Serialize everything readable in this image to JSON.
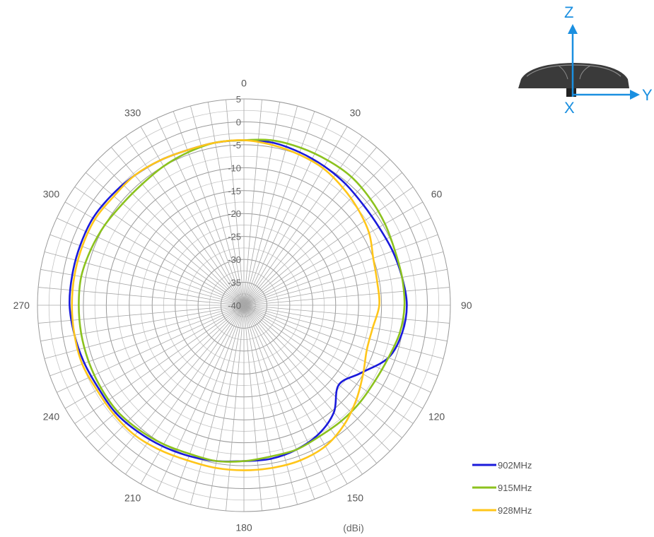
{
  "chart_data": {
    "type": "polar-line",
    "unit_label": "(dBi)",
    "r_range": [
      -40,
      5
    ],
    "r_ticks": [
      5,
      0,
      -5,
      -10,
      -15,
      -20,
      -25,
      -30,
      -35,
      -40
    ],
    "angle_ticks": [
      0,
      30,
      60,
      90,
      120,
      150,
      180,
      210,
      240,
      270,
      300,
      330
    ],
    "angle_direction": "clockwise",
    "zero_angle": "top",
    "grid": true,
    "legend_position": "bottom-right",
    "series": [
      {
        "name": "902MHz",
        "color": "#1a1adb",
        "points": [
          [
            0,
            -4
          ],
          [
            10,
            -4
          ],
          [
            20,
            -4.5
          ],
          [
            30,
            -5
          ],
          [
            40,
            -5.5
          ],
          [
            50,
            -6
          ],
          [
            60,
            -6
          ],
          [
            70,
            -5.5
          ],
          [
            80,
            -5
          ],
          [
            90,
            -4.5
          ],
          [
            100,
            -5
          ],
          [
            110,
            -6.5
          ],
          [
            120,
            -10.5
          ],
          [
            130,
            -13
          ],
          [
            140,
            -9.5
          ],
          [
            150,
            -7.5
          ],
          [
            160,
            -6.5
          ],
          [
            170,
            -6
          ],
          [
            180,
            -6
          ],
          [
            190,
            -5.5
          ],
          [
            200,
            -5
          ],
          [
            210,
            -4.5
          ],
          [
            220,
            -4
          ],
          [
            230,
            -3.5
          ],
          [
            240,
            -3.5
          ],
          [
            250,
            -3
          ],
          [
            260,
            -2.5
          ],
          [
            270,
            -2
          ],
          [
            280,
            -2
          ],
          [
            290,
            -2
          ],
          [
            300,
            -2
          ],
          [
            310,
            -2.5
          ],
          [
            320,
            -3
          ],
          [
            330,
            -3.5
          ],
          [
            340,
            -4
          ],
          [
            350,
            -4
          ]
        ]
      },
      {
        "name": "915MHz",
        "color": "#8cc21e",
        "points": [
          [
            0,
            -4
          ],
          [
            10,
            -3.5
          ],
          [
            20,
            -3.5
          ],
          [
            30,
            -3.5
          ],
          [
            40,
            -3.5
          ],
          [
            50,
            -4
          ],
          [
            60,
            -4.5
          ],
          [
            70,
            -5
          ],
          [
            80,
            -5
          ],
          [
            90,
            -5
          ],
          [
            100,
            -5.5
          ],
          [
            110,
            -6.5
          ],
          [
            120,
            -7
          ],
          [
            130,
            -7
          ],
          [
            140,
            -7
          ],
          [
            150,
            -7
          ],
          [
            160,
            -6.5
          ],
          [
            170,
            -6.5
          ],
          [
            180,
            -6
          ],
          [
            190,
            -5.5
          ],
          [
            200,
            -5.5
          ],
          [
            210,
            -5
          ],
          [
            220,
            -4.5
          ],
          [
            230,
            -4
          ],
          [
            240,
            -4
          ],
          [
            250,
            -4
          ],
          [
            260,
            -4
          ],
          [
            270,
            -4
          ],
          [
            280,
            -4
          ],
          [
            290,
            -4.5
          ],
          [
            300,
            -5
          ],
          [
            310,
            -5.5
          ],
          [
            320,
            -5.5
          ],
          [
            330,
            -5
          ],
          [
            340,
            -4.5
          ],
          [
            350,
            -4
          ]
        ]
      },
      {
        "name": "928MHz",
        "color": "#ffc61a",
        "points": [
          [
            0,
            -4
          ],
          [
            10,
            -4.5
          ],
          [
            20,
            -5
          ],
          [
            30,
            -5.5
          ],
          [
            40,
            -6.5
          ],
          [
            50,
            -7.5
          ],
          [
            60,
            -8.5
          ],
          [
            70,
            -10
          ],
          [
            80,
            -10.5
          ],
          [
            90,
            -10.5
          ],
          [
            100,
            -11.5
          ],
          [
            110,
            -11.5
          ],
          [
            120,
            -10
          ],
          [
            130,
            -8
          ],
          [
            140,
            -6
          ],
          [
            150,
            -4.5
          ],
          [
            160,
            -4
          ],
          [
            170,
            -4
          ],
          [
            180,
            -4
          ],
          [
            190,
            -4
          ],
          [
            200,
            -4
          ],
          [
            210,
            -3.5
          ],
          [
            220,
            -3
          ],
          [
            230,
            -3
          ],
          [
            240,
            -3
          ],
          [
            250,
            -2.5
          ],
          [
            260,
            -2.5
          ],
          [
            270,
            -2.5
          ],
          [
            280,
            -2.5
          ],
          [
            290,
            -2.5
          ],
          [
            300,
            -2.5
          ],
          [
            310,
            -3
          ],
          [
            320,
            -3
          ],
          [
            330,
            -3.5
          ],
          [
            340,
            -4
          ],
          [
            350,
            -4
          ]
        ]
      }
    ]
  },
  "orientation_diagram": {
    "z_label": "Z",
    "y_label": "Y",
    "x_label": "X",
    "axis_color": "#1a8fe0"
  }
}
